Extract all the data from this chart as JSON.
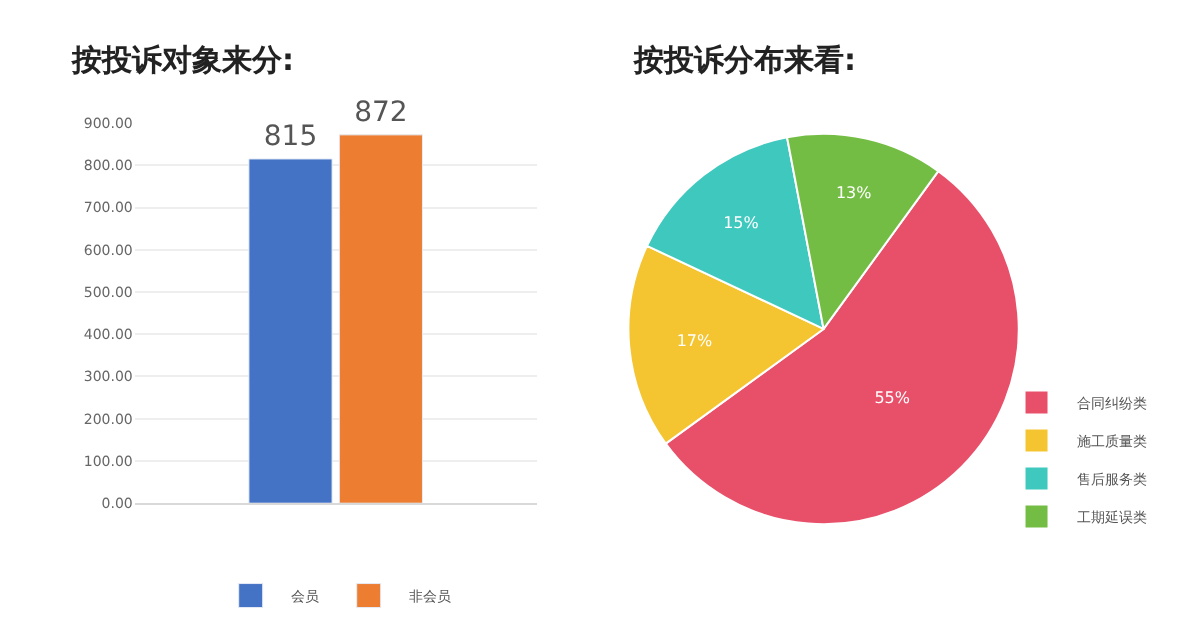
{
  "chart_data": [
    {
      "type": "bar",
      "title": "按投诉对象来分:",
      "categories": [
        null
      ],
      "series": [
        {
          "name": "会员",
          "color": "#4472c4",
          "values": [
            815
          ]
        },
        {
          "name": "非会员",
          "color": "#ed7d31",
          "values": [
            872
          ]
        }
      ],
      "ylim": [
        0,
        900
      ],
      "yticks": [
        {
          "value": 0,
          "label": "0.00"
        },
        {
          "value": 100,
          "label": "100.00"
        },
        {
          "value": 200,
          "label": "200.00"
        },
        {
          "value": 300,
          "label": "300.00"
        },
        {
          "value": 400,
          "label": "400.00"
        },
        {
          "value": 500,
          "label": "500.00"
        },
        {
          "value": 600,
          "label": "600.00"
        },
        {
          "value": 700,
          "label": "700.00"
        },
        {
          "value": 800,
          "label": "800.00"
        },
        {
          "value": 900,
          "label": "900.00"
        }
      ],
      "grid": "y",
      "legend": "bottom",
      "data_labels": true
    },
    {
      "type": "pie",
      "title": "按投诉分布来看:",
      "categories": [
        "合同纠纷类",
        "施工质量类",
        "售后服务类",
        "工期延误类"
      ],
      "values": [
        55,
        17,
        15,
        13
      ],
      "colors": [
        "#e8506a",
        "#f5c431",
        "#3ec8be",
        "#74bd44"
      ],
      "value_labels": [
        "55%",
        "17%",
        "15%",
        "13%"
      ],
      "legend": "bottom right"
    }
  ]
}
